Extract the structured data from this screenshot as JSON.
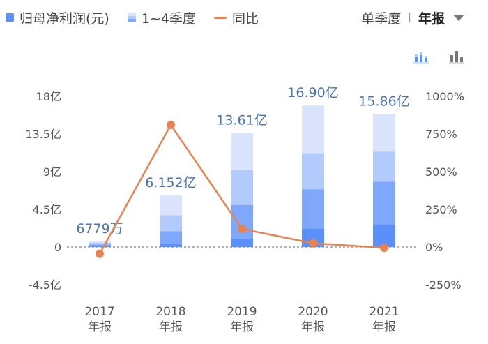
{
  "legend": {
    "net_profit": "归母净利润(元)",
    "quarters": "1~4季度",
    "yoy": "同比"
  },
  "switch": {
    "single_quarter": "单季度",
    "annual": "年报"
  },
  "colors": {
    "bar_main": "#5b8ff9",
    "q1": "#5b8ff9",
    "q2": "#7fa7fb",
    "q3": "#b3cafc",
    "q4": "#dae5fd",
    "line": "#e8834f",
    "zero_line": "#999999"
  },
  "icons": {
    "bar_view": "stacked-bar-icon",
    "column_view": "column-chart-icon"
  },
  "chart_data": {
    "type": "bar",
    "categories": [
      "2017",
      "2018",
      "2019",
      "2020",
      "2021"
    ],
    "category_suffix": "年报",
    "series": [
      {
        "name": "归母净利润(元)",
        "values": [
          0.6779,
          6.152,
          13.61,
          16.9,
          15.86
        ]
      },
      {
        "name": "1~4季度",
        "values": [
          [
            0.15,
            0.17,
            0.18,
            0.18
          ],
          [
            0.4,
            1.5,
            1.9,
            2.352
          ],
          [
            1.0,
            4.0,
            4.2,
            4.41
          ],
          [
            2.2,
            4.7,
            4.3,
            5.7
          ],
          [
            2.7,
            5.1,
            3.6,
            4.46
          ]
        ]
      },
      {
        "name": "同比",
        "values": [
          -45,
          810,
          120,
          25,
          -5
        ]
      }
    ],
    "value_labels": [
      "6779万",
      "6.152亿",
      "13.61亿",
      "16.90亿",
      "15.86亿"
    ],
    "y_left": {
      "ticks": [
        -4.5,
        0,
        4.5,
        9,
        13.5,
        18
      ],
      "tick_labels": [
        "-4.5亿",
        "0",
        "4.5亿",
        "9亿",
        "13.5亿",
        "18亿"
      ],
      "range": [
        -4.5,
        18
      ]
    },
    "y_right": {
      "ticks": [
        -250,
        0,
        250,
        500,
        750,
        1000
      ],
      "tick_labels": [
        "-250%",
        "0%",
        "250%",
        "500%",
        "750%",
        "1000%"
      ],
      "range": [
        -250,
        1000
      ]
    },
    "grid": false
  }
}
